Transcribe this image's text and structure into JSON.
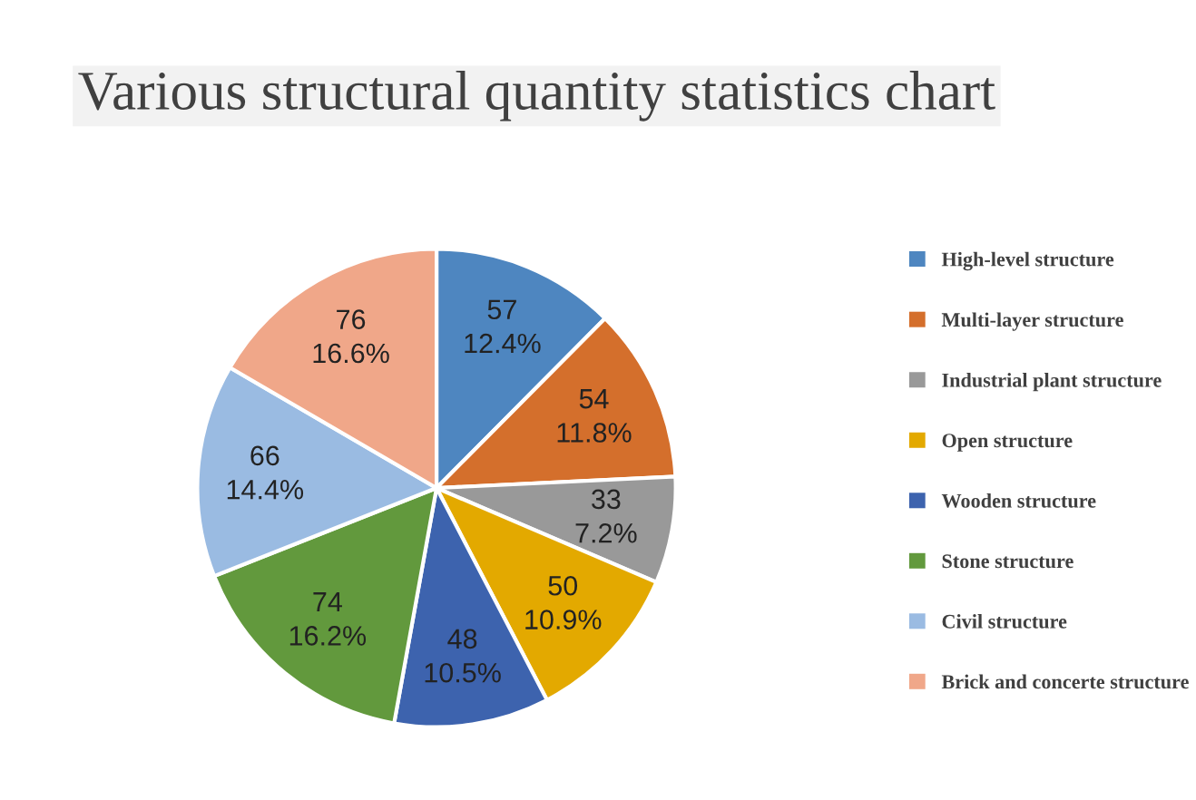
{
  "chart_data": {
    "type": "pie",
    "title": "Various structural quantity statistics chart",
    "categories": [
      "High-level structure",
      "Multi-layer structure",
      "Industrial plant structure",
      "Open structure",
      "Wooden structure",
      "Stone structure",
      "Civil structure",
      "Brick and concerte structure"
    ],
    "values": [
      57,
      54,
      33,
      50,
      48,
      74,
      66,
      76
    ],
    "colors": [
      "#4e86c0",
      "#d46f2c",
      "#999999",
      "#e3a900",
      "#3d63ae",
      "#62993d",
      "#9abbe2",
      "#f0a789"
    ],
    "value_labels": [
      "57\n12.4%",
      "54\n11.8%",
      "33\n7.2%",
      "50\n10.9%",
      "48\n10.5%",
      "74\n16.2%",
      "66\n14.4%",
      "76\n16.6%"
    ],
    "legend": "right"
  }
}
